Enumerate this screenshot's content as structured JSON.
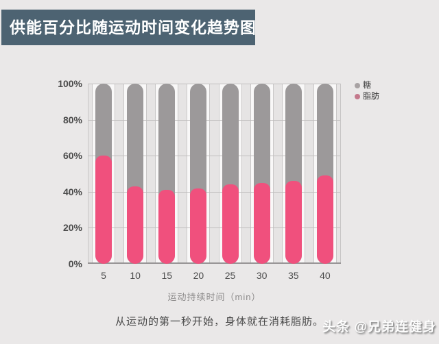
{
  "banner": {
    "title": "供能百分比随运动时间变化趋势图"
  },
  "chart_data": {
    "type": "bar",
    "stacked": true,
    "categories": [
      "5",
      "10",
      "15",
      "20",
      "25",
      "30",
      "35",
      "40"
    ],
    "series": [
      {
        "name": "糖",
        "color": "#9c999a",
        "values": [
          40,
          57,
          59,
          58,
          56,
          55,
          54,
          51
        ]
      },
      {
        "name": "脂肪",
        "color": "#f0507d",
        "values": [
          60,
          43,
          41,
          42,
          44,
          45,
          46,
          49
        ]
      }
    ],
    "xlabel": "运动持续时间（min）",
    "ylabel": "",
    "y_ticks": [
      "100%",
      "80%",
      "60%",
      "40%",
      "20%",
      "0%"
    ],
    "ylim": [
      0,
      100
    ],
    "grid": true,
    "legend_position": "right-top",
    "legend": [
      {
        "label": "糖",
        "dot_color": "#a8a2a3"
      },
      {
        "label": "脂肪",
        "dot_color": "#c4798c"
      }
    ]
  },
  "caption": "从运动的第一秒开始，身体就在消耗脂肪。",
  "watermark": "头条 @兄弟连健身",
  "colors": {
    "page_bg": "#eae8e8",
    "banner_bg": "#4d6372",
    "bar_sugar": "#9c999a",
    "bar_fat": "#f0507d",
    "gridline": "#bfbdbd"
  }
}
